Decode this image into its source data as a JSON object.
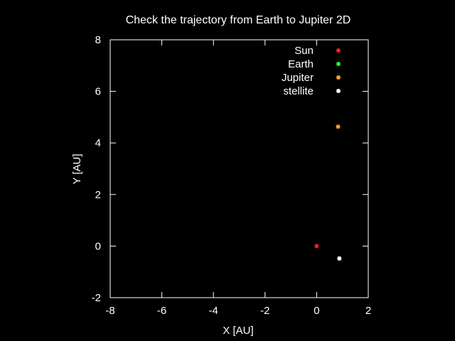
{
  "chart_data": {
    "type": "scatter",
    "title": "Check the trajectory from Earth to Jupiter 2D",
    "xlabel": "X [AU]",
    "ylabel": "Y [AU]",
    "xlim": [
      -8,
      2
    ],
    "ylim": [
      -2,
      8
    ],
    "xticks": [
      -8,
      -6,
      -4,
      -2,
      0,
      2
    ],
    "yticks": [
      -2,
      0,
      2,
      4,
      6,
      8
    ],
    "xtick_labels": [
      "-8",
      "-6",
      "-4",
      "-2",
      "0",
      "2"
    ],
    "ytick_labels": [
      "-2",
      "0",
      "2",
      "4",
      "6",
      "8"
    ],
    "grid": false,
    "legend_position": "top-right",
    "series": [
      {
        "name": "Sun",
        "color": "#ff2020",
        "points": [
          [
            0.0,
            0.0
          ]
        ]
      },
      {
        "name": "Earth",
        "color": "#20ff20",
        "points": [
          [
            0.88,
            -0.48
          ]
        ]
      },
      {
        "name": "Jupiter",
        "color": "#ffa030",
        "points": [
          [
            0.83,
            4.63
          ]
        ]
      },
      {
        "name": "stellite",
        "color": "#ffffff",
        "points": [
          [
            0.88,
            -0.48
          ]
        ]
      }
    ]
  }
}
